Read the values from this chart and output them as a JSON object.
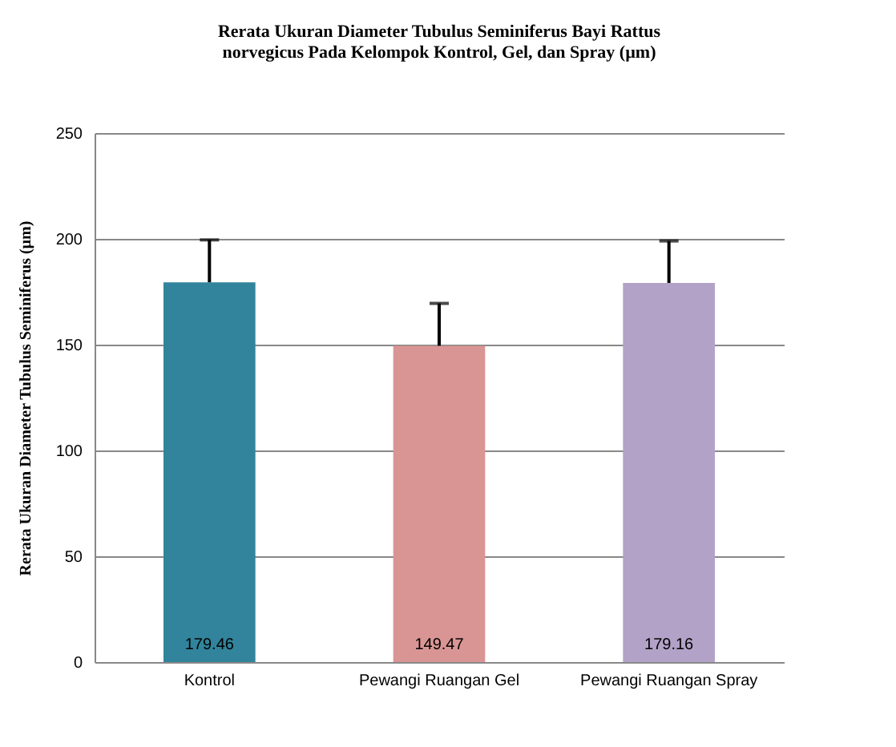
{
  "chart_data": {
    "type": "bar",
    "title": "Rerata Ukuran Diameter Tubulus Seminiferus Bayi Rattus norvegicus Pada Kelompok Kontrol, Gel, dan Spray (µm)",
    "ylabel": "Rerata Ukuran Diameter Tubulus Seminiferus (µm)",
    "categories": [
      "Kontrol",
      "Pewangi Ruangan Gel",
      "Pewangi Ruangan Spray"
    ],
    "values": [
      179.46,
      149.47,
      179.16
    ],
    "colors": [
      "#31849b",
      "#d99594",
      "#b2a2c7"
    ],
    "errors": [
      [
        179.46,
        199.5
      ],
      [
        149.47,
        169.5
      ],
      [
        179.16,
        199
      ]
    ],
    "data_labels": true,
    "ylim": [
      0,
      250
    ],
    "yticks": [
      0,
      50,
      100,
      150,
      200,
      250
    ],
    "grid": "y"
  }
}
